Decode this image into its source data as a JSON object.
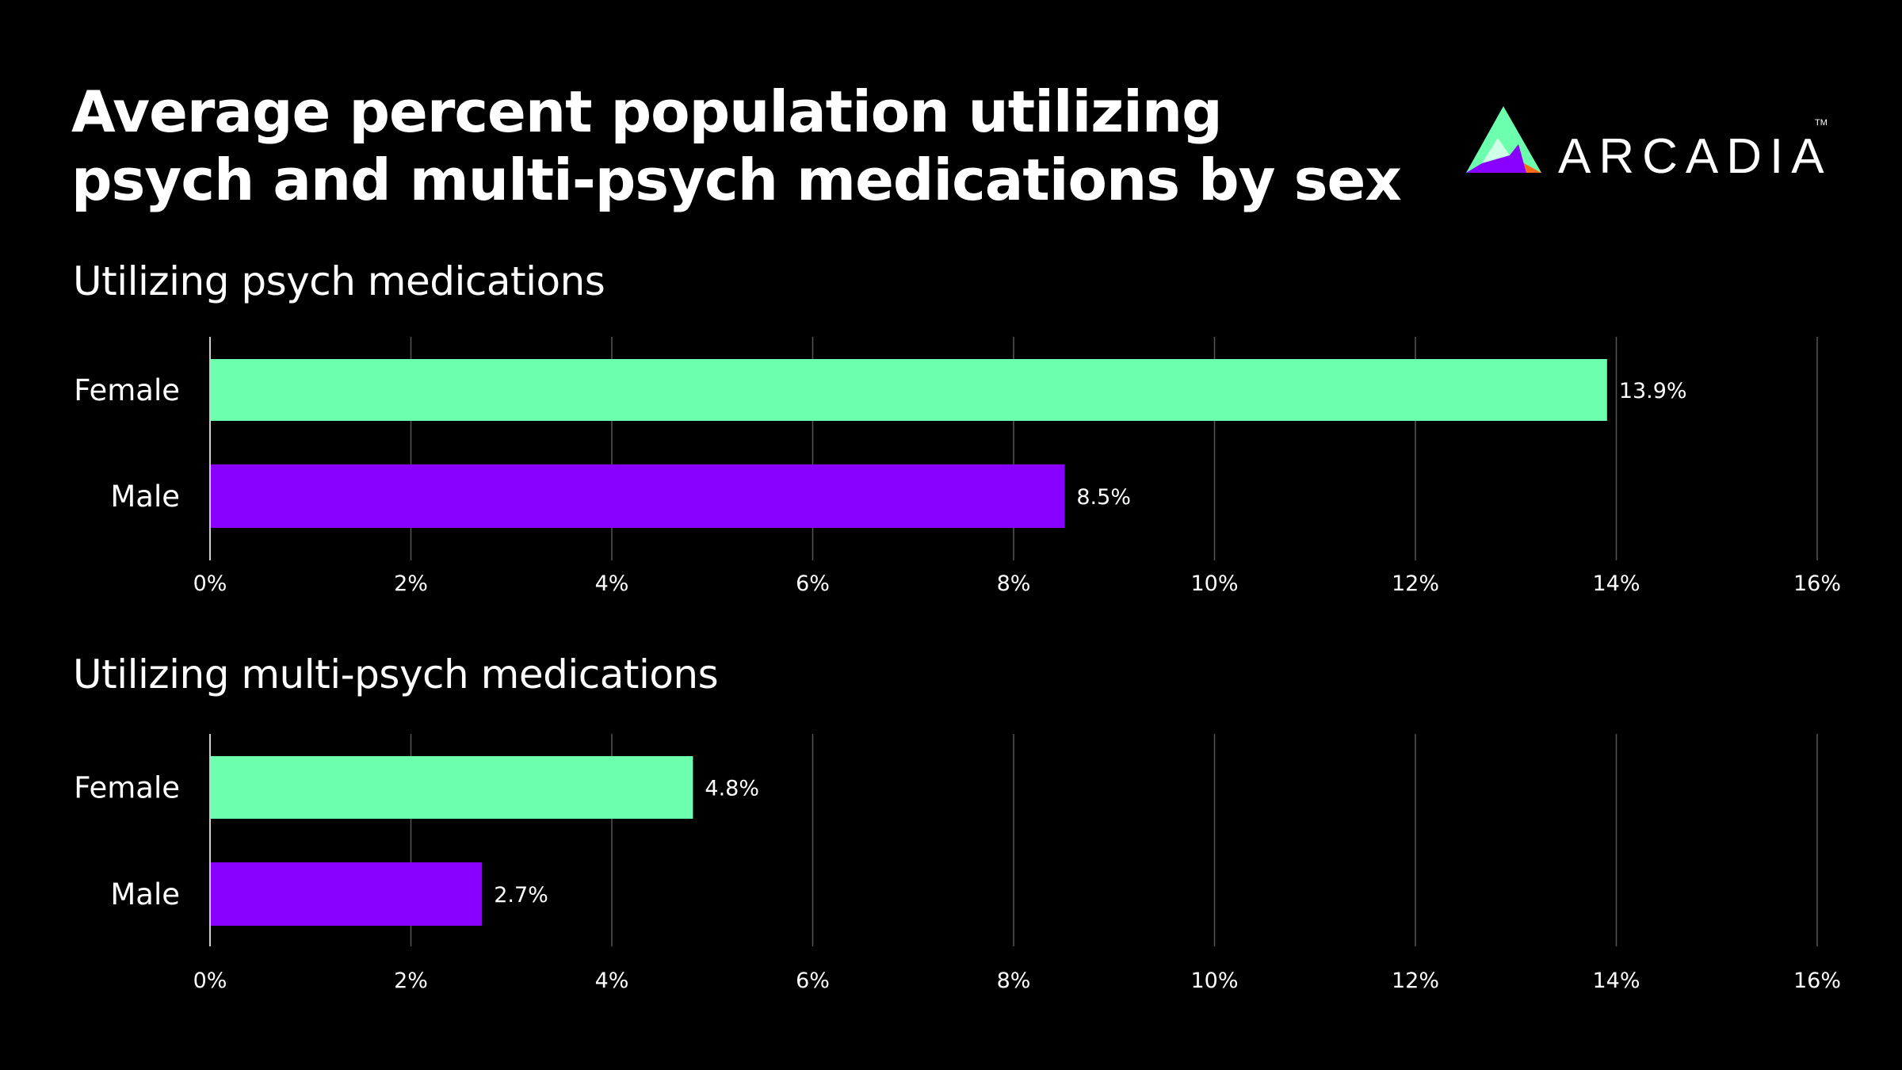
{
  "title_lines": [
    "Average percent population utilizing",
    "psych and multi-psych medications by sex"
  ],
  "logo": {
    "text": "ARCADIA",
    "trademark": "TM"
  },
  "colors": {
    "female": "#6BFFAE",
    "male": "#8800FF",
    "background": "#000000",
    "grid": "#555555",
    "logo_orange": "#FF6A1A"
  },
  "chart_data": [
    {
      "type": "bar",
      "orientation": "horizontal",
      "title": "Utilizing psych medications",
      "categories": [
        "Female",
        "Male"
      ],
      "values": [
        13.9,
        8.5
      ],
      "data_labels": [
        "13.9%",
        "8.5%"
      ],
      "xlim": [
        0,
        16
      ],
      "xticks": [
        "0%",
        "2%",
        "4%",
        "6%",
        "8%",
        "10%",
        "12%",
        "14%",
        "16%"
      ],
      "grid": true
    },
    {
      "type": "bar",
      "orientation": "horizontal",
      "title": "Utilizing multi-psych medications",
      "categories": [
        "Female",
        "Male"
      ],
      "values": [
        4.8,
        2.7
      ],
      "data_labels": [
        "4.8%",
        "2.7%"
      ],
      "xlim": [
        0,
        16
      ],
      "xticks": [
        "0%",
        "2%",
        "4%",
        "6%",
        "8%",
        "10%",
        "12%",
        "14%",
        "16%"
      ],
      "grid": true
    }
  ]
}
